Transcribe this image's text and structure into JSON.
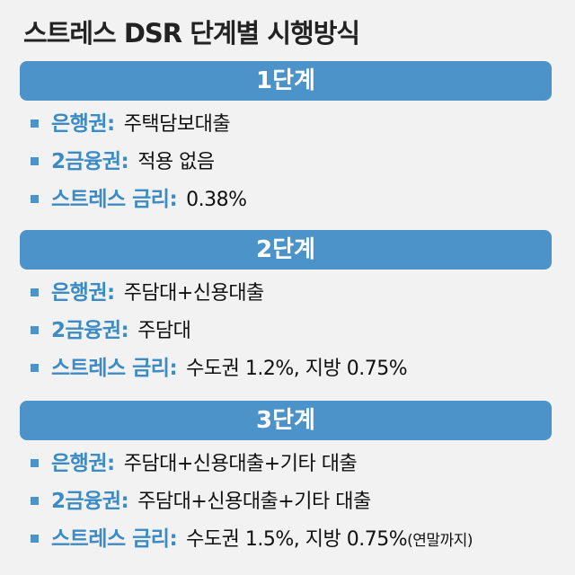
{
  "title": "스트레스 DSR 단계별 시행방식",
  "stages": [
    {
      "header": "1단계",
      "items": [
        {
          "label": "은행권:",
          "text": "주택담보대출"
        },
        {
          "label": "2금융권:",
          "text": "적용 없음"
        },
        {
          "label": "스트레스 금리:",
          "text": "0.38%"
        }
      ]
    },
    {
      "header": "2단계",
      "items": [
        {
          "label": "은행권:",
          "text": "주담대+신용대출"
        },
        {
          "label": "2금융권:",
          "text": "주담대"
        },
        {
          "label": "스트레스 금리:",
          "text": "수도권 1.2%, 지방 0.75%"
        }
      ]
    },
    {
      "header": "3단계",
      "items": [
        {
          "label": "은행권:",
          "text": "주담대+신용대출+기타 대출"
        },
        {
          "label": "2금융권:",
          "text": "주담대+신용대출+기타 대출"
        },
        {
          "label": "스트레스 금리:",
          "text": "수도권 1.5%, 지방 0.75%",
          "note": "(연말까지)"
        }
      ]
    }
  ]
}
